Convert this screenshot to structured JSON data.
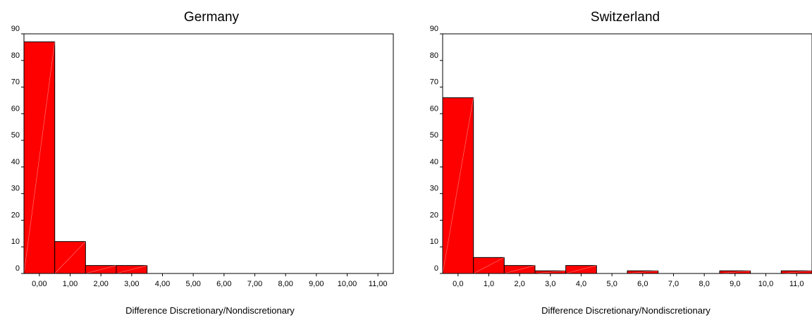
{
  "chart_data": [
    {
      "type": "bar",
      "title": "Germany",
      "xlabel": "Difference  Discretionary/Nondiscretionary",
      "ylabel": "",
      "ylim": [
        0,
        90
      ],
      "yticks": [
        0,
        10,
        20,
        30,
        40,
        50,
        60,
        70,
        80,
        90
      ],
      "categories": [
        "0,00",
        "1,00",
        "2,00",
        "3,00",
        "4,00",
        "5,00",
        "6,00",
        "7,00",
        "8,00",
        "9,00",
        "10,00",
        "11,00"
      ],
      "values": [
        87,
        12,
        3,
        3,
        0,
        0,
        0,
        0,
        0,
        0,
        0,
        0
      ],
      "bar_color": "#ff0000",
      "grid": false
    },
    {
      "type": "bar",
      "title": "Switzerland",
      "xlabel": "Difference  Discretionary/Nondiscretionary",
      "ylabel": "",
      "ylim": [
        0,
        90
      ],
      "yticks": [
        0,
        10,
        20,
        30,
        40,
        50,
        60,
        70,
        80,
        90
      ],
      "categories": [
        "0,0",
        "1,0",
        "2,0",
        "3,0",
        "4,0",
        "5,0",
        "6,0",
        "7,0",
        "8,0",
        "9,0",
        "10,0",
        "11,0"
      ],
      "values": [
        66,
        6,
        3,
        1,
        3,
        0,
        1,
        0,
        0,
        1,
        0,
        1
      ],
      "bar_color": "#ff0000",
      "grid": false
    }
  ]
}
